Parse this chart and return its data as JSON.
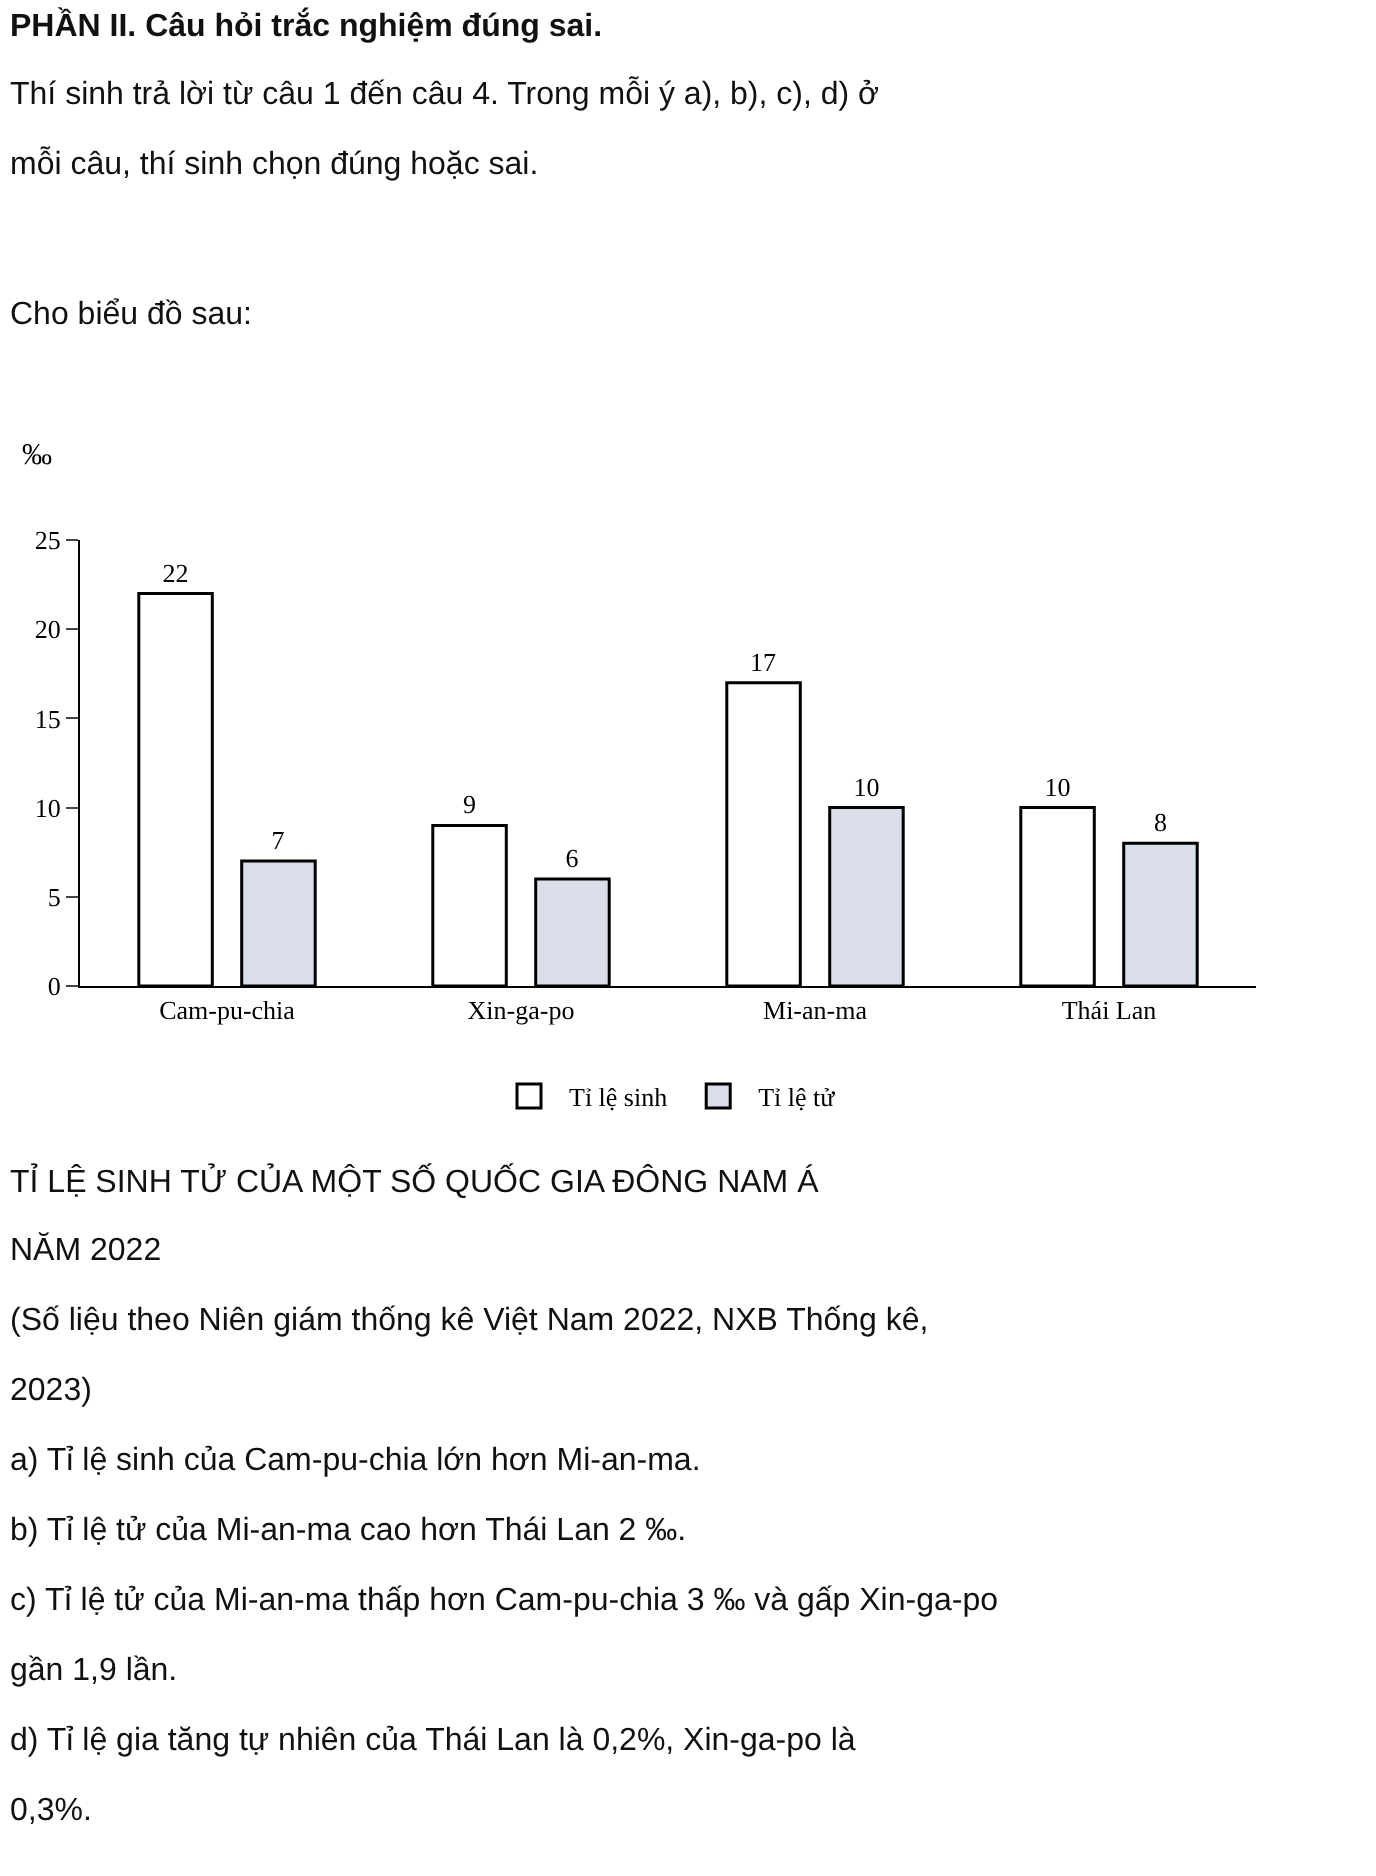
{
  "chart_data": {
    "type": "bar",
    "title": "TỈ LỆ SINH TỬ CỦA MỘT SỐ QUỐC GIA ĐÔNG NAM Á NĂM 2022",
    "ylabel": "‰",
    "categories": [
      "Cam-pu-chia",
      "Xin-ga-po",
      "Mi-an-ma",
      "Thái Lan"
    ],
    "series": [
      {
        "name": "Tỉ lệ sinh",
        "color": "#ffffff",
        "values": [
          22,
          9,
          17,
          10
        ]
      },
      {
        "name": "Tỉ lệ tử",
        "color": "#d9dee8",
        "values": [
          7,
          6,
          10,
          8
        ]
      }
    ],
    "ylim": [
      0,
      25
    ],
    "yticks": [
      0,
      5,
      10,
      15,
      20,
      25
    ],
    "legend": "bottom",
    "data_labels": true,
    "annotations": [
      "PHẦN II. Câu hỏi trắc nghiệm đúng sai.",
      "Thí sinh trả lời từ câu 1 đến câu 4. Trong mỗi ý a), b), c), d) ở mỗi câu, thí sinh chọn đúng hoặc sai.",
      "Cho biểu đồ sau:",
      "(Số liệu theo Niên giám thống kê Việt Nam 2022, NXB Thống kê, 2023)",
      "a) Tỉ lệ sinh của Cam-pu-chia lớn hơn Mi-an-ma.",
      "b) Tỉ lệ tử của Mi-an-ma cao hơn Thái Lan 2 ‰.",
      "c) Tỉ lệ tử của Mi-an-ma thấp hơn Cam-pu-chia 3 ‰ và gấp Xin-ga-po gần 1,9 lần.",
      "d) Tỉ lệ gia tăng tự nhiên của Thái Lan là 0,2%, Xin-ga-po là 0,3%."
    ]
  }
}
